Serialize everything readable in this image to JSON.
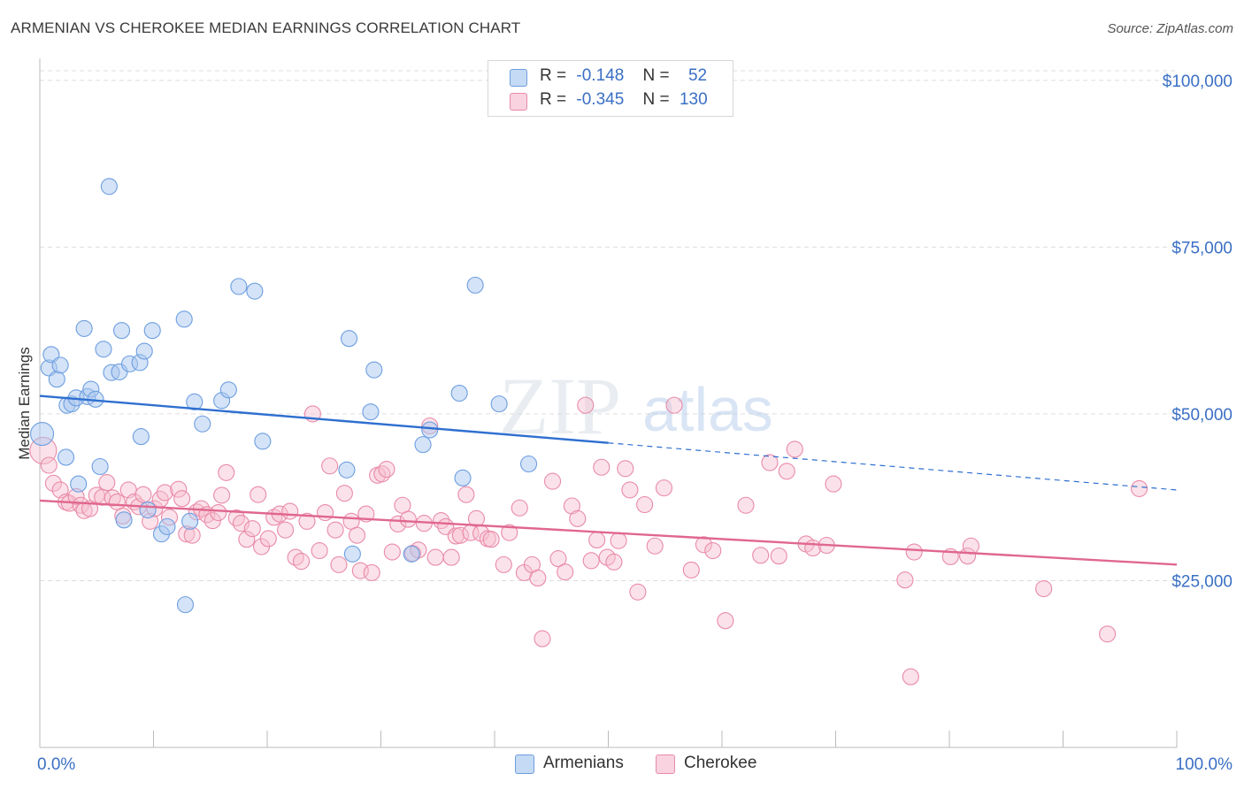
{
  "title": "ARMENIAN VS CHEROKEE MEDIAN EARNINGS CORRELATION CHART",
  "source": "Source: ZipAtlas.com",
  "watermark": {
    "zip": "ZIP",
    "atlas": "atlas"
  },
  "legend": {
    "rows": [
      {
        "r_label": "R =",
        "r_value": "-0.148",
        "n_label": "N =",
        "n_value": "52"
      },
      {
        "r_label": "R =",
        "r_value": "-0.345",
        "n_label": "N =",
        "n_value": "130"
      }
    ]
  },
  "bottom_legend": {
    "armenians": "Armenians",
    "cherokee": "Cherokee"
  },
  "colors": {
    "armenian_fill": "#aac8ef",
    "armenian_stroke": "#6d9ee0",
    "armenian_line": "#2e6fd0",
    "cherokee_fill": "#f6bfd0",
    "cherokee_stroke": "#e98aa8",
    "cherokee_line": "#e0678f",
    "axis_label": "#3a6fc4",
    "grid": "#dddddd"
  },
  "chart_data": {
    "type": "scatter",
    "title": "ARMENIAN VS CHEROKEE MEDIAN EARNINGS CORRELATION CHART",
    "xlabel": "",
    "ylabel": "Median Earnings",
    "x_tick_labels": [
      "0.0%",
      "100.0%"
    ],
    "y_tick_labels": [
      "$25,000",
      "$50,000",
      "$75,000",
      "$100,000"
    ],
    "y_ticks": [
      25000,
      50000,
      75000,
      100000
    ],
    "xlim": [
      0,
      100
    ],
    "ylim": [
      0,
      102500
    ],
    "grid": true,
    "legend_position": "top-center",
    "series": [
      {
        "name": "Armenians",
        "r": -0.148,
        "n": 52,
        "trend": {
          "x0": 0,
          "y0": 52700,
          "x1": 100,
          "y1": 38600,
          "solid_until": 50
        },
        "points": [
          [
            0.2,
            47000
          ],
          [
            0.8,
            56900
          ],
          [
            1.0,
            58900
          ],
          [
            1.5,
            55200
          ],
          [
            1.8,
            57300
          ],
          [
            2.3,
            43500
          ],
          [
            2.4,
            51300
          ],
          [
            2.8,
            51500
          ],
          [
            3.2,
            52400
          ],
          [
            3.4,
            39500
          ],
          [
            3.9,
            62800
          ],
          [
            4.2,
            52600
          ],
          [
            4.5,
            53700
          ],
          [
            4.9,
            52200
          ],
          [
            5.3,
            42100
          ],
          [
            5.6,
            59700
          ],
          [
            6.1,
            84100
          ],
          [
            6.3,
            56200
          ],
          [
            7.0,
            56300
          ],
          [
            7.2,
            62500
          ],
          [
            7.4,
            34100
          ],
          [
            7.9,
            57500
          ],
          [
            8.8,
            57700
          ],
          [
            8.9,
            46600
          ],
          [
            9.2,
            59400
          ],
          [
            9.5,
            35600
          ],
          [
            9.9,
            62500
          ],
          [
            10.7,
            32000
          ],
          [
            11.2,
            33100
          ],
          [
            12.7,
            64200
          ],
          [
            12.8,
            21400
          ],
          [
            13.2,
            33900
          ],
          [
            13.6,
            51800
          ],
          [
            14.3,
            48500
          ],
          [
            16.0,
            52000
          ],
          [
            16.6,
            53600
          ],
          [
            17.5,
            69100
          ],
          [
            18.9,
            68400
          ],
          [
            19.6,
            45900
          ],
          [
            27.0,
            41600
          ],
          [
            27.2,
            61300
          ],
          [
            27.5,
            29000
          ],
          [
            29.1,
            50300
          ],
          [
            29.4,
            56600
          ],
          [
            32.7,
            29000
          ],
          [
            33.7,
            45400
          ],
          [
            34.3,
            47600
          ],
          [
            36.9,
            53100
          ],
          [
            37.2,
            40400
          ],
          [
            38.3,
            69300
          ],
          [
            40.4,
            51500
          ],
          [
            43.0,
            42500
          ]
        ]
      },
      {
        "name": "Cherokee",
        "r": -0.345,
        "n": 130,
        "trend": {
          "x0": 0,
          "y0": 37000,
          "x1": 100,
          "y1": 27400
        },
        "points": [
          [
            0.3,
            44500
          ],
          [
            0.8,
            42300
          ],
          [
            1.2,
            39600
          ],
          [
            1.8,
            38600
          ],
          [
            2.3,
            36800
          ],
          [
            2.6,
            36600
          ],
          [
            3.2,
            37600
          ],
          [
            3.6,
            36300
          ],
          [
            3.9,
            35500
          ],
          [
            4.4,
            35800
          ],
          [
            5.0,
            37800
          ],
          [
            5.5,
            37500
          ],
          [
            5.9,
            39700
          ],
          [
            6.4,
            37400
          ],
          [
            6.8,
            36800
          ],
          [
            7.3,
            34700
          ],
          [
            7.8,
            38600
          ],
          [
            8.3,
            36800
          ],
          [
            8.7,
            36100
          ],
          [
            9.1,
            37900
          ],
          [
            9.7,
            33900
          ],
          [
            10.1,
            35800
          ],
          [
            10.6,
            37200
          ],
          [
            11.0,
            38200
          ],
          [
            11.4,
            34500
          ],
          [
            12.2,
            38700
          ],
          [
            12.5,
            37300
          ],
          [
            12.9,
            32000
          ],
          [
            13.4,
            31800
          ],
          [
            13.8,
            35300
          ],
          [
            14.2,
            35800
          ],
          [
            14.7,
            34900
          ],
          [
            15.2,
            34000
          ],
          [
            15.7,
            35200
          ],
          [
            16.0,
            37800
          ],
          [
            16.4,
            41200
          ],
          [
            17.3,
            34400
          ],
          [
            17.7,
            33600
          ],
          [
            18.2,
            31200
          ],
          [
            18.7,
            32800
          ],
          [
            19.2,
            37900
          ],
          [
            19.5,
            30100
          ],
          [
            20.1,
            31300
          ],
          [
            20.6,
            34500
          ],
          [
            21.1,
            35000
          ],
          [
            21.6,
            32600
          ],
          [
            22.0,
            35400
          ],
          [
            22.5,
            28500
          ],
          [
            23.0,
            27900
          ],
          [
            23.5,
            33900
          ],
          [
            24.0,
            50000
          ],
          [
            24.6,
            29500
          ],
          [
            25.1,
            35200
          ],
          [
            25.5,
            42200
          ],
          [
            26.0,
            32600
          ],
          [
            26.3,
            27400
          ],
          [
            26.8,
            38100
          ],
          [
            27.4,
            33900
          ],
          [
            27.9,
            31800
          ],
          [
            28.2,
            26500
          ],
          [
            28.7,
            35000
          ],
          [
            29.2,
            26200
          ],
          [
            29.7,
            40800
          ],
          [
            30.1,
            41000
          ],
          [
            30.5,
            41700
          ],
          [
            31.0,
            29300
          ],
          [
            31.5,
            33500
          ],
          [
            31.9,
            36300
          ],
          [
            32.4,
            34200
          ],
          [
            32.8,
            29100
          ],
          [
            33.3,
            29600
          ],
          [
            33.8,
            33600
          ],
          [
            34.3,
            48200
          ],
          [
            34.8,
            28500
          ],
          [
            35.3,
            34000
          ],
          [
            35.7,
            33100
          ],
          [
            36.2,
            28500
          ],
          [
            36.6,
            31700
          ],
          [
            37.0,
            31800
          ],
          [
            37.5,
            37900
          ],
          [
            37.9,
            32200
          ],
          [
            38.4,
            34300
          ],
          [
            38.8,
            32100
          ],
          [
            39.4,
            31300
          ],
          [
            39.7,
            31200
          ],
          [
            40.8,
            27400
          ],
          [
            41.3,
            32200
          ],
          [
            42.2,
            35900
          ],
          [
            42.6,
            26200
          ],
          [
            43.3,
            27400
          ],
          [
            43.8,
            25400
          ],
          [
            44.2,
            16300
          ],
          [
            45.1,
            39900
          ],
          [
            45.6,
            28300
          ],
          [
            46.2,
            26300
          ],
          [
            46.8,
            36200
          ],
          [
            47.3,
            34300
          ],
          [
            48.0,
            51300
          ],
          [
            48.5,
            28000
          ],
          [
            49.0,
            31100
          ],
          [
            49.4,
            42000
          ],
          [
            49.9,
            28500
          ],
          [
            50.5,
            27800
          ],
          [
            50.9,
            31000
          ],
          [
            51.5,
            41800
          ],
          [
            51.9,
            38600
          ],
          [
            52.6,
            23300
          ],
          [
            53.2,
            36400
          ],
          [
            54.1,
            30200
          ],
          [
            54.9,
            38900
          ],
          [
            55.8,
            51300
          ],
          [
            57.3,
            26600
          ],
          [
            58.4,
            30400
          ],
          [
            59.2,
            29500
          ],
          [
            60.3,
            19000
          ],
          [
            62.1,
            36300
          ],
          [
            63.4,
            28800
          ],
          [
            64.2,
            42700
          ],
          [
            65.0,
            28700
          ],
          [
            65.7,
            41400
          ],
          [
            66.4,
            44700
          ],
          [
            67.4,
            30500
          ],
          [
            68.0,
            29900
          ],
          [
            69.2,
            30300
          ],
          [
            69.8,
            39500
          ],
          [
            76.1,
            25100
          ],
          [
            76.6,
            10600
          ],
          [
            76.9,
            29300
          ],
          [
            80.1,
            28600
          ],
          [
            81.6,
            28700
          ],
          [
            81.9,
            30200
          ],
          [
            88.3,
            23800
          ],
          [
            93.9,
            17000
          ],
          [
            96.7,
            38800
          ]
        ]
      }
    ]
  }
}
